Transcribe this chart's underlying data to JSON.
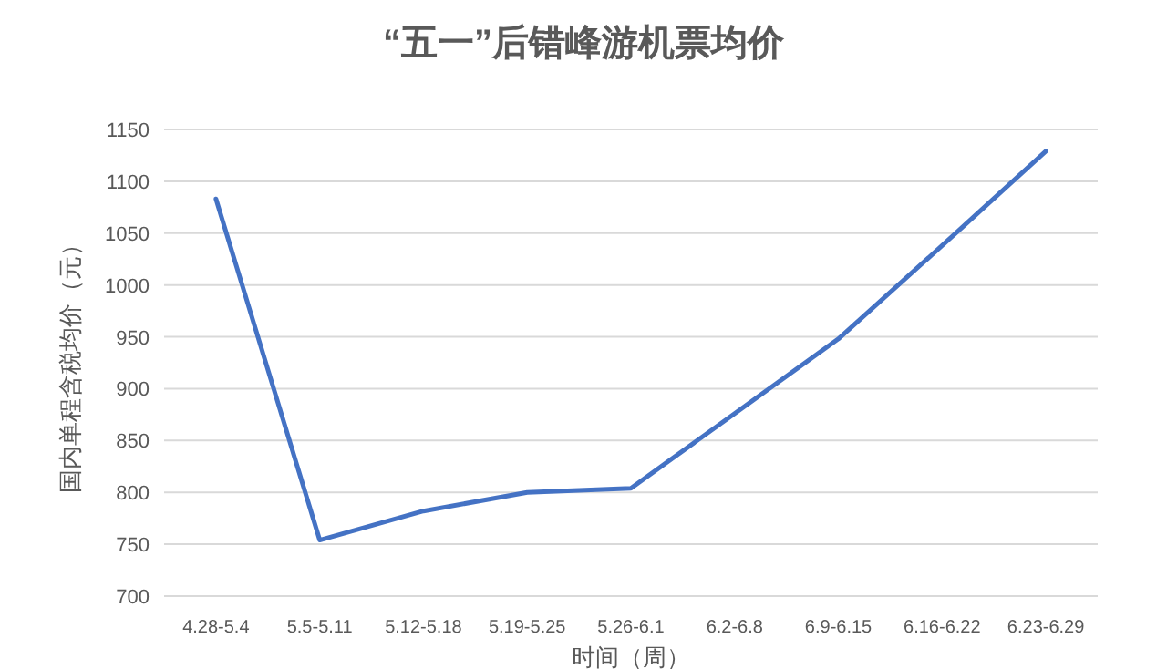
{
  "chart_data": {
    "type": "line",
    "title": "“五一”后错峰游机票均价",
    "xlabel": "时间（周）",
    "ylabel": "国内单程含税均价（元）",
    "categories": [
      "4.28-5.4",
      "5.5-5.11",
      "5.12-5.18",
      "5.19-5.25",
      "5.26-6.1",
      "6.2-6.8",
      "6.9-6.15",
      "6.16-6.22",
      "6.23-6.29"
    ],
    "series": [
      {
        "color": "#4472c4",
        "values": [
          1083,
          754,
          782,
          800,
          804,
          876,
          948,
          1038,
          1129
        ]
      }
    ],
    "ylim": [
      700,
      1150
    ],
    "yticks": [
      700,
      750,
      800,
      850,
      900,
      950,
      1000,
      1050,
      1100,
      1150
    ],
    "grid": "y",
    "marker": "none",
    "line_style": "solid"
  }
}
